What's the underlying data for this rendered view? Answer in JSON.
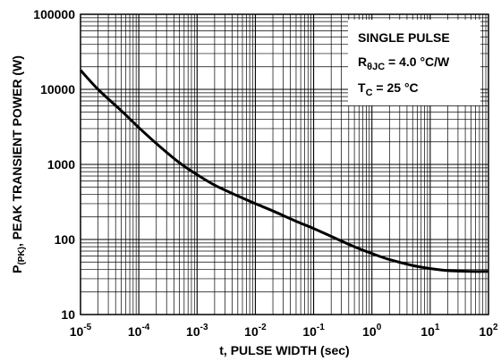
{
  "chart_data": {
    "type": "line",
    "x_scale": "log",
    "y_scale": "log",
    "xlim": [
      1e-05,
      100
    ],
    "ylim": [
      10,
      100000
    ],
    "grid": true,
    "xlabel": "t, PULSE WIDTH (sec)",
    "ylabel": {
      "prefix": "P",
      "subscript": "(PK)",
      "suffix": ", PEAK TRANSIENT POWER (W)"
    },
    "x_ticks": [
      {
        "value": 1e-05,
        "base": "10",
        "exp": "-5"
      },
      {
        "value": 0.0001,
        "base": "10",
        "exp": "-4"
      },
      {
        "value": 0.001,
        "base": "10",
        "exp": "-3"
      },
      {
        "value": 0.01,
        "base": "10",
        "exp": "-2"
      },
      {
        "value": 0.1,
        "base": "10",
        "exp": "-1"
      },
      {
        "value": 1,
        "base": "10",
        "exp": "0"
      },
      {
        "value": 10,
        "base": "10",
        "exp": "1"
      },
      {
        "value": 100,
        "base": "10",
        "exp": "2"
      }
    ],
    "y_ticks": [
      {
        "value": 10,
        "label": "10"
      },
      {
        "value": 100,
        "label": "100"
      },
      {
        "value": 1000,
        "label": "1000"
      },
      {
        "value": 10000,
        "label": "10000"
      },
      {
        "value": 100000,
        "label": "100000"
      }
    ],
    "legend": {
      "placement": "top-right",
      "line1": "SINGLE PULSE",
      "line2": {
        "prefix": "R",
        "subscript": "θJC",
        "value": " = 4.0 ",
        "unit": "°C/W"
      },
      "line3": {
        "prefix": "T",
        "subscript": "C",
        "value": " = 25 ",
        "unit": "°C"
      }
    },
    "series": [
      {
        "color": "#000000",
        "points": [
          [
            1e-05,
            18000
          ],
          [
            2e-05,
            10000
          ],
          [
            5e-05,
            5200
          ],
          [
            0.0001,
            3100
          ],
          [
            0.0002,
            1900
          ],
          [
            0.0005,
            1050
          ],
          [
            0.001,
            730
          ],
          [
            0.002,
            530
          ],
          [
            0.005,
            380
          ],
          [
            0.01,
            300
          ],
          [
            0.02,
            240
          ],
          [
            0.05,
            175
          ],
          [
            0.1,
            140
          ],
          [
            0.2,
            110
          ],
          [
            0.5,
            80
          ],
          [
            1,
            65
          ],
          [
            2,
            54
          ],
          [
            5,
            45
          ],
          [
            10,
            41
          ],
          [
            20,
            38.5
          ],
          [
            50,
            37.5
          ],
          [
            100,
            37.5
          ]
        ]
      }
    ]
  }
}
